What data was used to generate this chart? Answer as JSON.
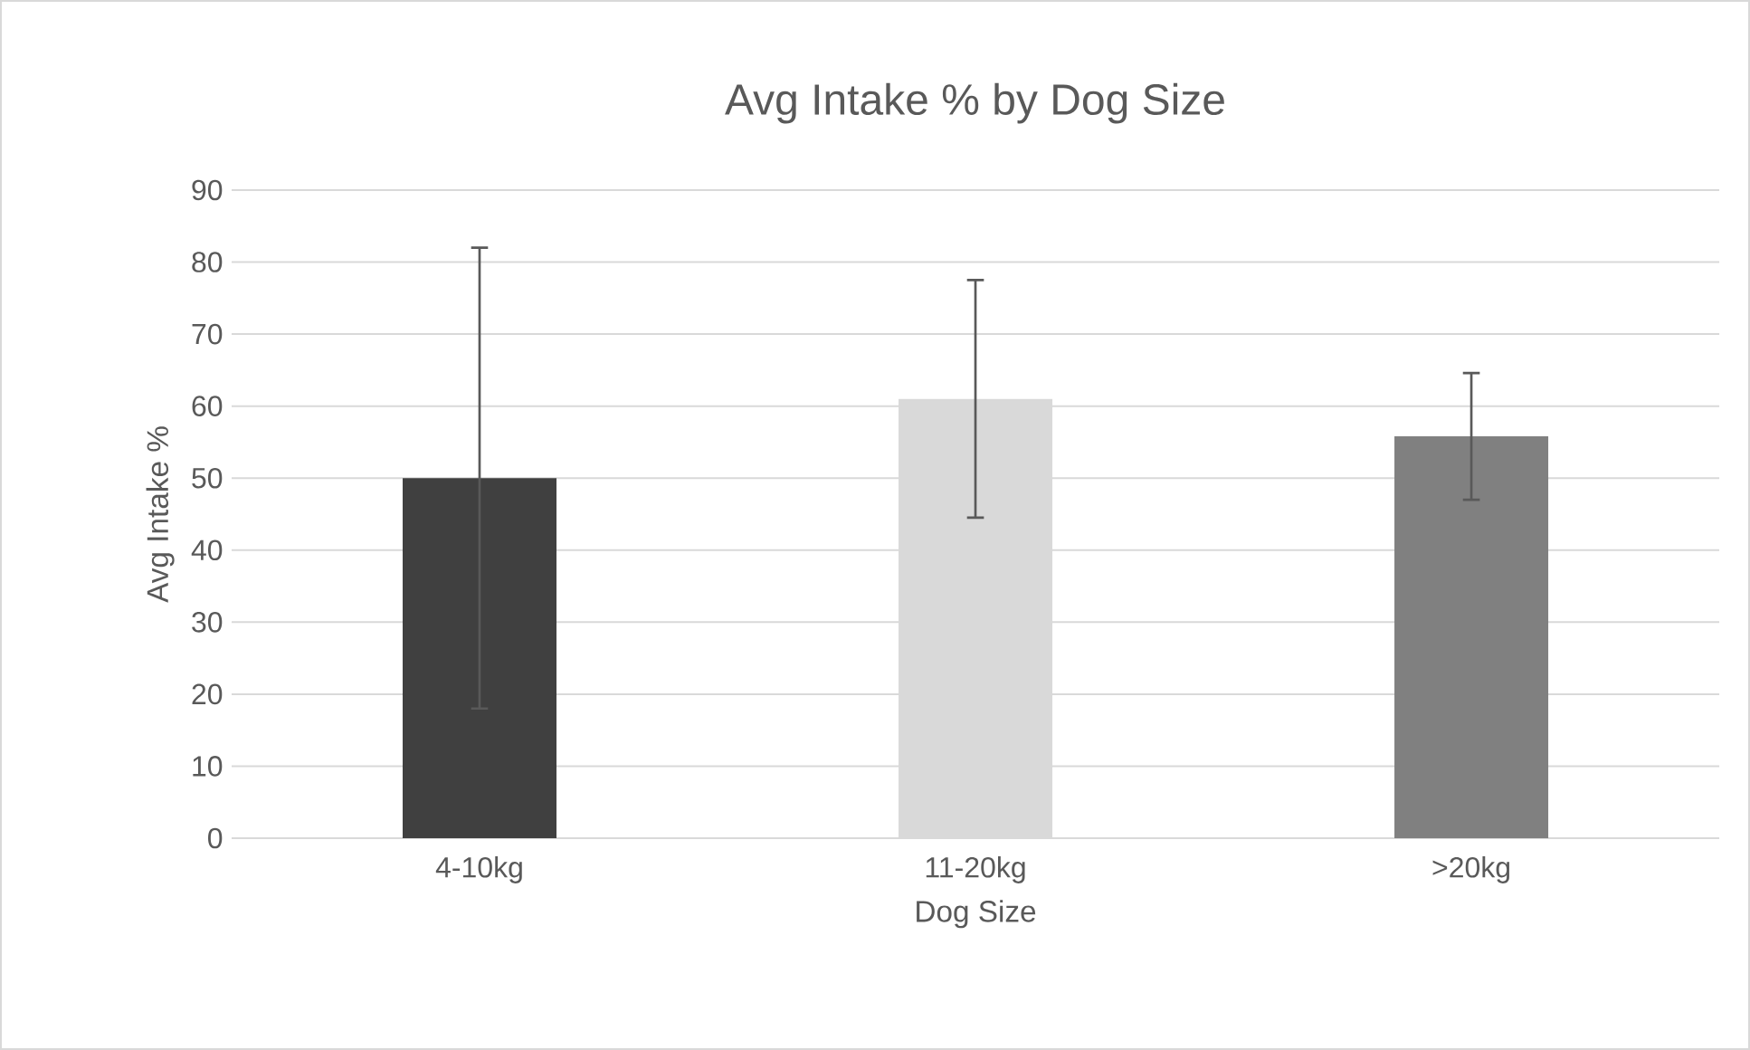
{
  "chart_data": {
    "type": "bar",
    "title": "Avg Intake % by Dog Size",
    "xlabel": "Dog Size",
    "ylabel": "Avg Intake %",
    "categories": [
      "4-10kg",
      "11-20kg",
      ">20kg"
    ],
    "values": [
      50,
      61,
      55.8
    ],
    "errors": [
      32,
      16.5,
      8.8
    ],
    "colors": [
      "#404040",
      "#d9d9d9",
      "#808080"
    ],
    "ylim": [
      0,
      90
    ],
    "yticks": [
      0,
      10,
      20,
      30,
      40,
      50,
      60,
      70,
      80,
      90
    ],
    "grid": "y"
  }
}
